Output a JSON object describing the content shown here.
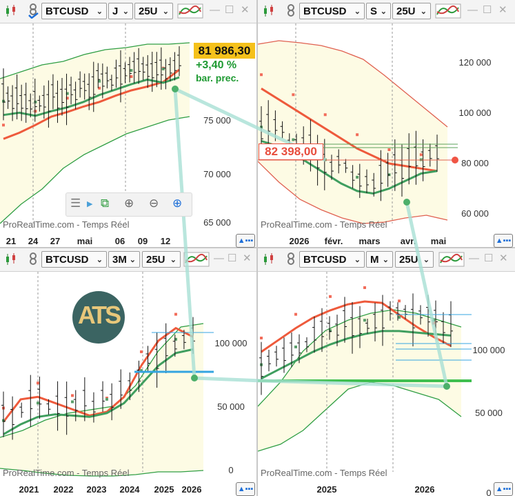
{
  "panels": [
    {
      "id": "p1",
      "toolbar": {
        "symbol": "BTCUSD",
        "timeframe": "J",
        "units": "25U"
      },
      "y_ticks": [
        "75 000",
        "70 000",
        "65 000"
      ],
      "x_ticks": [
        "21",
        "24",
        "27",
        "mai",
        "06",
        "09",
        "12"
      ],
      "watermark": "ProRealTime.com - Temps Réel",
      "price_label": "81 986,30",
      "change_label": "+3,40 %",
      "prev_label": "bar. prec."
    },
    {
      "id": "p2",
      "toolbar": {
        "symbol": "BTCUSD",
        "timeframe": "S",
        "units": "25U"
      },
      "y_ticks": [
        "120 000",
        "100 000",
        "80 000",
        "60 000"
      ],
      "x_ticks": [
        "2026",
        "févr.",
        "mars",
        "avr.",
        "mai"
      ],
      "watermark": "ProRealTime.com - Temps Réel",
      "price_label": "82 398,00"
    },
    {
      "id": "p3",
      "toolbar": {
        "symbol": "BTCUSD",
        "timeframe": "3M",
        "units": "25U"
      },
      "y_ticks": [
        "100 000",
        "50 000",
        "0"
      ],
      "x_ticks": [
        "2021",
        "2022",
        "2023",
        "2024",
        "2025",
        "2026"
      ],
      "watermark": "ProRealTime.com - Temps Réel",
      "logo_text": "ATS"
    },
    {
      "id": "p4",
      "toolbar": {
        "symbol": "BTCUSD",
        "timeframe": "M",
        "units": "25U"
      },
      "y_ticks": [
        "100 000",
        "50 000",
        "0"
      ],
      "x_ticks": [
        "2025",
        "2026"
      ],
      "watermark": "ProRealTime.com - Temps Réel"
    }
  ],
  "colors": {
    "band_fill": "#fdfbe4",
    "band_line": "#2f9e44",
    "ma_red": "#ee5a3c",
    "ma_green": "#3f9e5f",
    "candle": "#111111",
    "psar_red": "#f26c5a",
    "psar_green": "#5a9e6a",
    "connector": "#a8e0d5"
  },
  "chart_data": [
    {
      "type": "line",
      "timeframe": "J",
      "ylim": [
        62000,
        88000
      ],
      "series": [
        {
          "values": [
            73000,
            73800,
            74800,
            75900,
            76500,
            77200,
            77800,
            78600,
            79300,
            79800,
            80400,
            81986
          ]
        },
        {
          "values": [
            76100,
            76400,
            76000,
            76600,
            77100,
            77800,
            78700,
            79400,
            80100,
            80700,
            80300,
            81000
          ]
        }
      ]
    },
    {
      "type": "line",
      "timeframe": "S",
      "ylim": [
        55000,
        135000
      ],
      "series": [
        {
          "values": [
            109000,
            105000,
            101000,
            97000,
            93000,
            89000,
            85000,
            82000,
            79000,
            78000,
            77000,
            76000
          ]
        },
        {
          "values": [
            88000,
            86000,
            83000,
            79000,
            75000,
            71000,
            68000,
            67000,
            69000,
            72000,
            75000,
            76000
          ]
        }
      ]
    },
    {
      "type": "line",
      "timeframe": "3M",
      "ylim": [
        -20000,
        140000
      ],
      "series": [
        {
          "values": [
            20000,
            38000,
            40000,
            35000,
            30000,
            25000,
            28000,
            40000,
            65000,
            85000,
            95000,
            88000
          ]
        },
        {
          "values": [
            10000,
            18000,
            24000,
            26000,
            25000,
            24000,
            27000,
            35000,
            50000,
            65000,
            75000,
            78000
          ]
        }
      ]
    },
    {
      "type": "line",
      "timeframe": "M",
      "ylim": [
        -5000,
        130000
      ],
      "series": [
        {
          "values": [
            76000,
            84000,
            92000,
            99000,
            104000,
            108000,
            110000,
            109000,
            101000,
            93000,
            86000,
            80000
          ]
        },
        {
          "values": [
            58000,
            64000,
            70000,
            76000,
            81000,
            85000,
            88000,
            90000,
            90000,
            89000,
            88000,
            87000
          ]
        }
      ]
    }
  ]
}
